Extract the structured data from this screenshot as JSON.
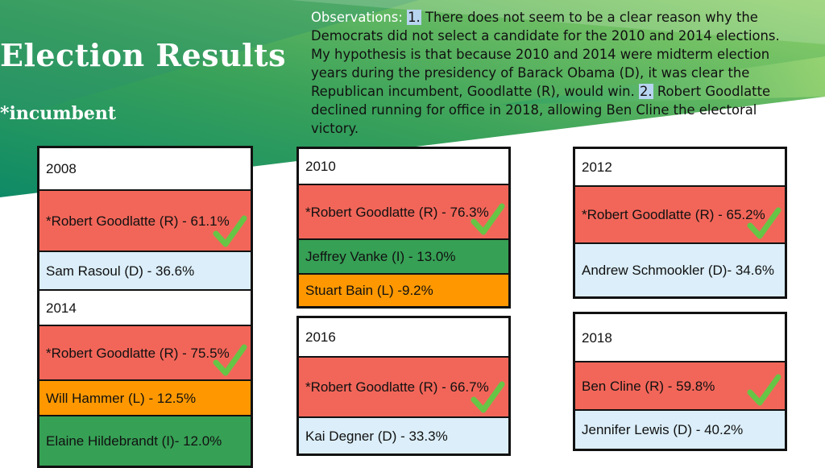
{
  "slide": {
    "title": "Election Results",
    "subtitle": "*incumbent"
  },
  "observations": {
    "label": "Observations:",
    "n1": "1.",
    "text1": " There does not seem to be a clear reason why the Democrats did not select a candidate for the 2010 and 2014 elections. My hypothesis is that because 2010 and 2014 were midterm election years during the presidency of Barack Obama (D), it was clear the Republican incumbent, Goodlatte (R), would win. ",
    "n2": "2.",
    "text2": "  Robert Goodlatte declined running for office in 2018, allowing Ben Cline the electoral victory."
  },
  "colors": {
    "republican": "#f26659",
    "democrat": "#dbeef9",
    "independent": "#36a055",
    "libertarian": "#ff9800",
    "check": "#67c546",
    "accent_green": "#2e9a5c"
  },
  "results": {
    "y2008": {
      "year": "2008",
      "candidates": [
        "*Robert Goodlatte (R) - 61.1%",
        "Sam Rasoul (D) - 36.6%"
      ]
    },
    "y2014": {
      "year": "2014",
      "candidates": [
        "*Robert Goodlatte (R) - 75.5%",
        "Will Hammer (L) - 12.5%",
        "Elaine Hildebrandt (I)- 12.0%"
      ]
    },
    "y2010": {
      "year": "2010",
      "candidates": [
        "*Robert Goodlatte (R) - 76.3%",
        "Jeffrey Vanke (I) - 13.0%",
        "Stuart Bain (L) -9.2%"
      ]
    },
    "y2016": {
      "year": "2016",
      "candidates": [
        "*Robert Goodlatte (R) - 66.7%",
        "Kai Degner (D) - 33.3%"
      ]
    },
    "y2012": {
      "year": "2012",
      "candidates": [
        "*Robert Goodlatte (R) - 65.2%",
        "Andrew Schmookler (D)- 34.6%"
      ]
    },
    "y2018": {
      "year": "2018",
      "candidates": [
        "Ben Cline (R) - 59.8%",
        "Jennifer Lewis (D) - 40.2%"
      ]
    }
  }
}
